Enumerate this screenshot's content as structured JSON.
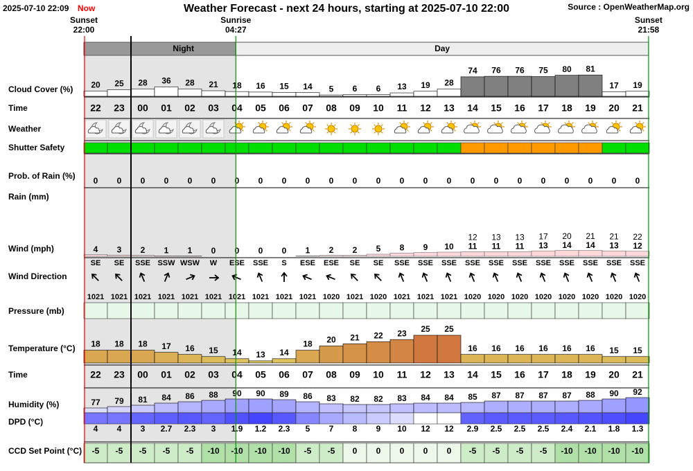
{
  "chart_data": {
    "type": "forecast",
    "timestamp": "2025-07-10 22:09",
    "now_label": "Now",
    "title": "Weather Forecast - next 24 hours, starting at 2025-07-10 22:00",
    "source": "Source : OpenWeatherMap.org",
    "sun_events": [
      {
        "label": "Sunset",
        "time": "22:00"
      },
      {
        "label": "Sunrise",
        "time": "04:27"
      },
      {
        "label": "Sunset",
        "time": "21:58"
      }
    ],
    "periods": {
      "night": "Night",
      "day": "Day"
    },
    "hours": [
      "22",
      "23",
      "00",
      "01",
      "02",
      "03",
      "04",
      "05",
      "06",
      "07",
      "08",
      "09",
      "10",
      "11",
      "12",
      "13",
      "14",
      "15",
      "16",
      "17",
      "18",
      "19",
      "20",
      "21"
    ],
    "time_label": "Time",
    "weather_label": "Weather",
    "cloud_cover": {
      "label": "Cloud Cover (%)",
      "values": [
        20,
        25,
        28,
        36,
        28,
        21,
        18,
        16,
        15,
        14,
        5,
        6,
        6,
        13,
        19,
        28,
        74,
        76,
        76,
        75,
        80,
        81,
        17,
        19
      ],
      "ylim": [
        0,
        100
      ],
      "color": "#808080"
    },
    "shutter_safety": {
      "label": "Shutter Safety",
      "colors": [
        "#00dd00",
        "#00dd00",
        "#00dd00",
        "#00dd00",
        "#00dd00",
        "#00dd00",
        "#00dd00",
        "#00dd00",
        "#00dd00",
        "#00dd00",
        "#00dd00",
        "#00dd00",
        "#00dd00",
        "#00dd00",
        "#00dd00",
        "#00dd00",
        "#ff9900",
        "#ff9900",
        "#ff9900",
        "#ff9900",
        "#ff9900",
        "#ff9900",
        "#00dd00",
        "#00dd00"
      ]
    },
    "rain_probability": {
      "label": "Prob. of Rain (%)",
      "values": [
        0,
        0,
        0,
        0,
        0,
        0,
        0,
        0,
        0,
        0,
        0,
        0,
        0,
        0,
        0,
        0,
        0,
        0,
        0,
        0,
        0,
        0,
        0,
        0
      ]
    },
    "rain_label": "Rain (mm)",
    "wind": {
      "label": "Wind (mph)",
      "values": [
        4,
        3,
        2,
        1,
        1,
        0,
        0,
        0,
        0,
        1,
        2,
        2,
        5,
        8,
        9,
        10,
        11,
        11,
        11,
        13,
        14,
        14,
        13,
        12
      ],
      "gusts": [
        null,
        null,
        null,
        null,
        null,
        null,
        null,
        null,
        null,
        null,
        null,
        null,
        null,
        null,
        null,
        null,
        12,
        13,
        13,
        17,
        20,
        21,
        21,
        22
      ],
      "ylim": [
        0,
        100
      ],
      "color": "#ffd8dc"
    },
    "wind_direction": {
      "label": "Wind Direction",
      "values": [
        "SE",
        "SE",
        "SSE",
        "SSW",
        "WSW",
        "W",
        "ESE",
        "SSE",
        "S",
        "ESE",
        "ESE",
        "SE",
        "SE",
        "SSE",
        "SSE",
        "SSE",
        "SSE",
        "SSE",
        "SSE",
        "SSE",
        "SSE",
        "SSE",
        "SSE",
        "SSE"
      ],
      "degrees": [
        135,
        135,
        157.5,
        202.5,
        247.5,
        270,
        112.5,
        157.5,
        180,
        112.5,
        112.5,
        135,
        135,
        157.5,
        157.5,
        157.5,
        157.5,
        157.5,
        157.5,
        157.5,
        157.5,
        157.5,
        157.5,
        157.5
      ]
    },
    "pressure": {
      "label": "Pressure (mb)",
      "values": [
        1021,
        1021,
        1021,
        1021,
        1021,
        1021,
        1021,
        1021,
        1021,
        1021,
        1020,
        1021,
        1020,
        1021,
        1021,
        1021,
        1020,
        1020,
        1020,
        1020,
        1020,
        1020,
        1020,
        1020
      ],
      "color": "#e8f8e8"
    },
    "temperature": {
      "label": "Temperature (°C)",
      "values": [
        18,
        18,
        18,
        17,
        16,
        15,
        14,
        13,
        14,
        18,
        20,
        21,
        22,
        23,
        25,
        25,
        16,
        16,
        16,
        16,
        16,
        16,
        15,
        15
      ],
      "ylim": [
        12,
        25
      ]
    },
    "humidity": {
      "label": "Humidity (%)",
      "values": [
        77,
        79,
        81,
        84,
        86,
        88,
        90,
        90,
        89,
        86,
        83,
        82,
        82,
        83,
        84,
        84,
        85,
        87,
        87,
        87,
        87,
        88,
        90,
        92
      ],
      "ylim": [
        70,
        100
      ]
    },
    "dpd": {
      "label": "DPD (°C)",
      "values": [
        4,
        4,
        3,
        2.7,
        2.3,
        3,
        1.9,
        1.2,
        2.3,
        5,
        7,
        8,
        9,
        10,
        12,
        12,
        2.9,
        2.5,
        2.5,
        2.5,
        2.4,
        2.1,
        1.8,
        1.3
      ],
      "color_range": [
        0,
        12
      ]
    },
    "ccd_set_point": {
      "label": "CCD Set Point (°C)",
      "values": [
        -5,
        -5,
        -5,
        -5,
        -5,
        -10,
        -10,
        -10,
        -10,
        -5,
        -5,
        0,
        0,
        0,
        0,
        0,
        -5,
        -5,
        -5,
        -5,
        -10,
        -10,
        -10,
        -10
      ],
      "color_range": [
        -10,
        0
      ]
    }
  }
}
